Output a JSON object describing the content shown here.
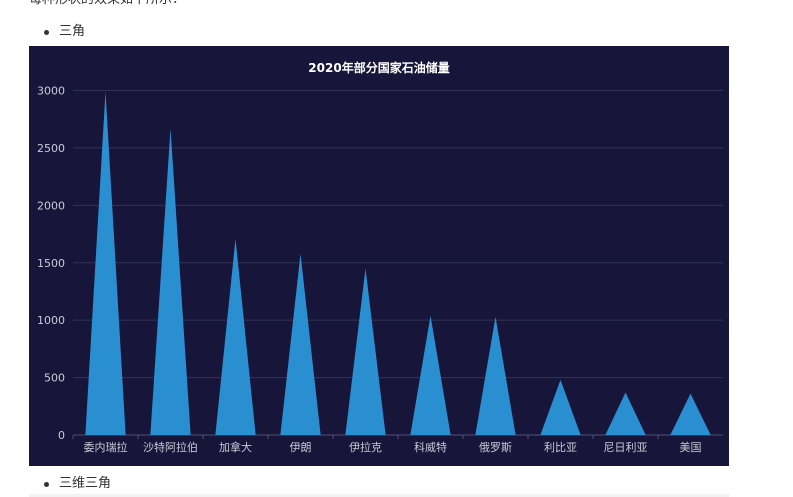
{
  "page": {
    "intro_text": "每种形状的效果如下所示：",
    "bullets": [
      "三角",
      "三维三角"
    ]
  },
  "colors": {
    "background": "#18153a",
    "bar": "#2a8fd0",
    "grid": "#303454",
    "axis_text": "#c9cad6",
    "title_text": "#ffffff"
  },
  "chart_data": {
    "type": "bar",
    "bar_shape": "triangle",
    "title": "2020年部分国家石油储量",
    "categories": [
      "委内瑞拉",
      "沙特阿拉伯",
      "加拿大",
      "伊朗",
      "伊拉克",
      "科威特",
      "俄罗斯",
      "利比亚",
      "尼日利亚",
      "美国"
    ],
    "values": [
      2990,
      2670,
      1710,
      1580,
      1450,
      1040,
      1030,
      480,
      370,
      360
    ],
    "ylim": [
      0,
      3000
    ],
    "yticks": [
      0,
      500,
      1000,
      1500,
      2000,
      2500,
      3000
    ],
    "grid": true,
    "xlabel": "",
    "ylabel": ""
  }
}
